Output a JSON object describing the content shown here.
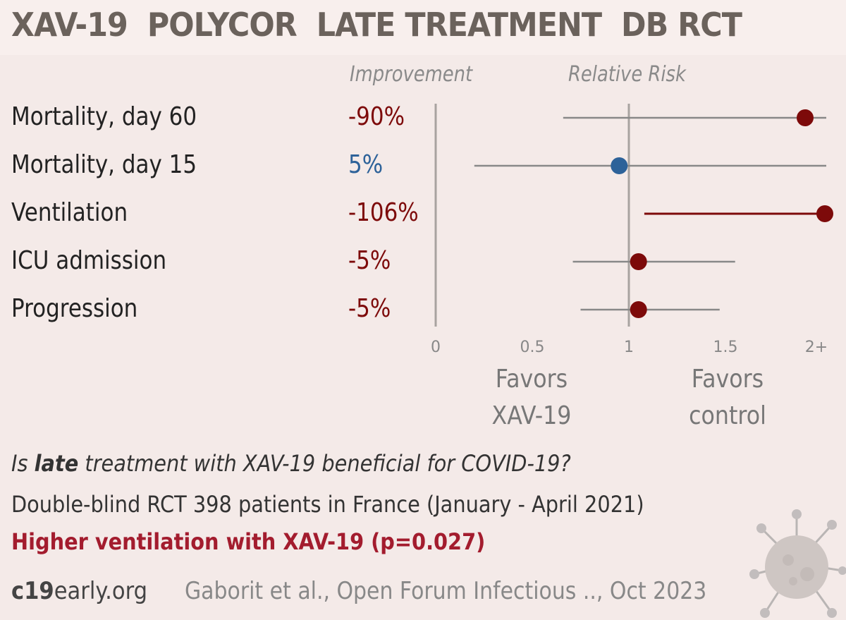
{
  "title": "XAV-19  POLYCOR  LATE TREATMENT  DB RCT",
  "headers": {
    "improvement": "Improvement",
    "relative_risk": "Relative Risk"
  },
  "favors": {
    "left_line1": "Favors",
    "left_line2": "XAV-19",
    "right_line1": "Favors",
    "right_line2": "control"
  },
  "question": {
    "pre": "Is ",
    "emph": "late",
    "post": " treatment with XAV-19 beneficial for COVID-19?"
  },
  "design": "Double-blind RCT 398 patients in France (January - April 2021)",
  "result": "Higher ventilation with XAV-19 (p=0.027)",
  "site": {
    "bold": "c19",
    "rest": "early.org"
  },
  "citation": "Gaborit et al., Open Forum Infectious .., Oct 2023",
  "colors": {
    "harm": "#7d0a0a",
    "benefit": "#2d6299",
    "ci": "#888888",
    "axis": "#a8a3a0",
    "highlight": "#a31c2e"
  },
  "icons": [
    "virus-icon"
  ],
  "chart_data": {
    "type": "forest",
    "x_axis": {
      "min": 0,
      "max": 2,
      "ticks": [
        0,
        0.5,
        1,
        1.5,
        2
      ],
      "tick_labels": [
        "0",
        "0.5",
        "1",
        "1.5",
        "2+"
      ],
      "reference_line": 1
    },
    "rows": [
      {
        "label": "Mortality, day 60",
        "improvement": "-90%",
        "rr": 1.9,
        "ci_low": 0.66,
        "ci_high": 2.0,
        "ci_truncated": true,
        "color": "#7d0a0a"
      },
      {
        "label": "Mortality, day 15",
        "improvement": "5%",
        "rr": 0.95,
        "ci_low": 0.2,
        "ci_high": 2.0,
        "ci_truncated": true,
        "color": "#2d6299"
      },
      {
        "label": "Ventilation",
        "improvement": "-106%",
        "rr": 2.06,
        "ci_low": 1.08,
        "ci_high": 2.0,
        "ci_truncated": true,
        "color": "#7d0a0a"
      },
      {
        "label": "ICU admission",
        "improvement": "-5%",
        "rr": 1.05,
        "ci_low": 0.71,
        "ci_high": 1.55,
        "ci_truncated": false,
        "color": "#7d0a0a"
      },
      {
        "label": "Progression",
        "improvement": "-5%",
        "rr": 1.05,
        "ci_low": 0.75,
        "ci_high": 1.47,
        "ci_truncated": false,
        "color": "#7d0a0a"
      }
    ]
  }
}
